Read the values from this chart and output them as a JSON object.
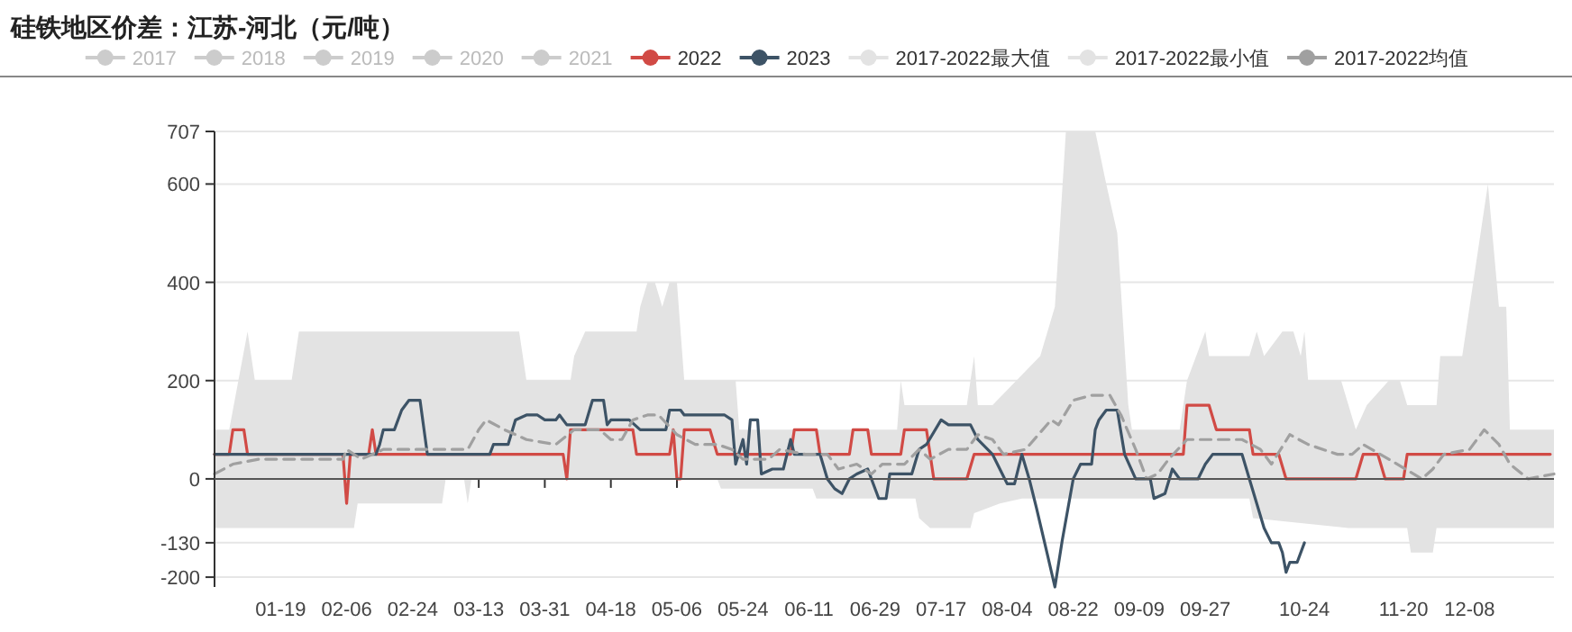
{
  "chart_data": {
    "type": "line",
    "title": "硅铁地区价差：江苏-河北（元/吨）",
    "xlim": [
      "--01-01",
      "--12-31"
    ],
    "xticks": [
      {
        "value": "--01-19",
        "label": "01-19"
      },
      {
        "value": "--02-06",
        "label": "02-06"
      },
      {
        "value": "--02-24",
        "label": "02-24"
      },
      {
        "value": "--03-13",
        "label": "03-13"
      },
      {
        "value": "--03-31",
        "label": "03-31"
      },
      {
        "value": "--04-18",
        "label": "04-18"
      },
      {
        "value": "--05-06",
        "label": "05-06"
      },
      {
        "value": "--05-24",
        "label": "05-24"
      },
      {
        "value": "--06-11",
        "label": "06-11"
      },
      {
        "value": "--06-29",
        "label": "06-29"
      },
      {
        "value": "--07-17",
        "label": "07-17"
      },
      {
        "value": "--08-04",
        "label": "08-04"
      },
      {
        "value": "--08-22",
        "label": "08-22"
      },
      {
        "value": "--09-09",
        "label": "09-09"
      },
      {
        "value": "--09-27",
        "label": "09-27"
      },
      {
        "value": "--10-15",
        "label": null
      },
      {
        "value": "--10-24",
        "label": "10-24"
      },
      {
        "value": "--11-02",
        "label": null
      },
      {
        "value": "--11-20",
        "label": "11-20"
      },
      {
        "value": "--12-08",
        "label": "12-08"
      }
    ],
    "ylim": [
      -220,
      707
    ],
    "yticks": [
      -200,
      -130,
      0,
      200,
      400,
      600,
      707
    ],
    "grid": "y",
    "legend": "top",
    "series": [
      {
        "name": "2017",
        "color": "#cccccc"
      },
      {
        "name": "2018",
        "color": "#cccccc"
      },
      {
        "name": "2019",
        "color": "#cccccc"
      },
      {
        "name": "2020",
        "color": "#cccccc"
      },
      {
        "name": "2021",
        "color": "#cccccc"
      },
      {
        "name": "2022",
        "color": "#d14a45",
        "x": [
          "--01-01",
          "--01-05",
          "--01-06",
          "--01-09",
          "--01-10",
          "--02-05",
          "--02-06",
          "--02-07",
          "--02-12",
          "--02-13",
          "--02-14",
          "--04-05",
          "--04-06",
          "--04-07",
          "--04-24",
          "--04-25",
          "--05-04",
          "--05-05",
          "--05-06",
          "--05-07",
          "--05-08",
          "--05-15",
          "--05-17",
          "--06-06",
          "--06-07",
          "--06-13",
          "--06-14",
          "--06-22",
          "--06-23",
          "--06-27",
          "--06-28",
          "--07-06",
          "--07-07",
          "--07-13",
          "--07-15",
          "--07-24",
          "--07-26",
          "--09-21",
          "--09-22",
          "--09-28",
          "--09-30",
          "--10-09",
          "--10-10",
          "--10-17",
          "--10-19",
          "--11-07",
          "--11-09",
          "--11-13",
          "--11-15",
          "--11-20",
          "--11-21",
          "--12-30"
        ],
        "values": [
          50,
          50,
          100,
          100,
          50,
          50,
          -50,
          50,
          50,
          100,
          50,
          50,
          0,
          100,
          100,
          50,
          50,
          100,
          0,
          0,
          100,
          100,
          50,
          50,
          100,
          100,
          50,
          50,
          100,
          100,
          50,
          50,
          100,
          100,
          0,
          0,
          50,
          50,
          150,
          150,
          100,
          100,
          50,
          50,
          0,
          0,
          50,
          50,
          0,
          0,
          50,
          50
        ]
      },
      {
        "name": "2023",
        "color": "#3d5366",
        "x": [
          "--01-01",
          "--02-14",
          "--02-15",
          "--02-16",
          "--02-19",
          "--02-21",
          "--02-23",
          "--02-26",
          "--02-28",
          "--03-16",
          "--03-17",
          "--03-21",
          "--03-23",
          "--03-26",
          "--03-29",
          "--03-31",
          "--04-03",
          "--04-04",
          "--04-06",
          "--04-11",
          "--04-13",
          "--04-16",
          "--04-17",
          "--04-18",
          "--04-23",
          "--04-26",
          "--05-03",
          "--05-04",
          "--05-07",
          "--05-08",
          "--05-19",
          "--05-21",
          "--05-22",
          "--05-24",
          "--05-25",
          "--05-26",
          "--05-28",
          "--05-29",
          "--06-01",
          "--06-04",
          "--06-06",
          "--06-07",
          "--06-14",
          "--06-16",
          "--06-18",
          "--06-20",
          "--06-22",
          "--06-24",
          "--06-27",
          "--06-30",
          "--07-02",
          "--07-03",
          "--07-09",
          "--07-11",
          "--07-13",
          "--07-17",
          "--07-19",
          "--07-25",
          "--07-27",
          "--07-31",
          "--08-02",
          "--08-04",
          "--08-06",
          "--08-08",
          "--08-10",
          "--08-12",
          "--08-15",
          "--08-17",
          "--08-19",
          "--08-22",
          "--08-24",
          "--08-27",
          "--08-28",
          "--08-29",
          "--08-31",
          "--09-03",
          "--09-05",
          "--09-08",
          "--09-12",
          "--09-13",
          "--09-16",
          "--09-18",
          "--09-20",
          "--09-25",
          "--09-27",
          "--09-29",
          "--10-07",
          "--10-09",
          "--10-11",
          "--10-13",
          "--10-15",
          "--10-17",
          "--10-18",
          "--10-19",
          "--10-20",
          "--10-22",
          "--10-24"
        ],
        "values": [
          50,
          50,
          70,
          100,
          100,
          140,
          160,
          160,
          50,
          50,
          70,
          70,
          120,
          130,
          130,
          120,
          120,
          130,
          110,
          110,
          160,
          160,
          110,
          120,
          120,
          100,
          100,
          140,
          140,
          130,
          130,
          120,
          30,
          80,
          30,
          120,
          120,
          10,
          20,
          20,
          80,
          50,
          50,
          0,
          -20,
          -30,
          0,
          10,
          20,
          -40,
          -40,
          10,
          10,
          60,
          70,
          120,
          110,
          110,
          80,
          50,
          20,
          -10,
          -10,
          50,
          0,
          -60,
          -155,
          -220,
          -125,
          0,
          30,
          30,
          100,
          120,
          140,
          140,
          50,
          0,
          0,
          -40,
          -30,
          20,
          0,
          0,
          30,
          50,
          50,
          0,
          -50,
          -100,
          -130,
          -130,
          -150,
          -190,
          -170,
          -170,
          -130
        ]
      },
      {
        "name": "2017-2022最大值",
        "type": "area",
        "color": "#e3e3e3",
        "x": [
          "--01-01",
          "--01-05",
          "--01-10",
          "--01-12",
          "--01-22",
          "--01-24",
          "--03-24",
          "--03-26",
          "--04-07",
          "--04-08",
          "--04-11",
          "--04-25",
          "--04-26",
          "--04-28",
          "--04-30",
          "--05-02",
          "--05-04",
          "--05-06",
          "--05-08",
          "--05-22",
          "--05-23",
          "--07-05",
          "--07-06",
          "--07-07",
          "--07-24",
          "--07-26",
          "--07-27",
          "--07-31",
          "--08-13",
          "--08-15",
          "--08-17",
          "--08-20",
          "--08-21",
          "--08-28",
          "--08-31",
          "--09-03",
          "--09-06",
          "--09-07",
          "--09-20",
          "--09-22",
          "--09-27",
          "--09-28",
          "--10-09",
          "--10-11",
          "--10-13",
          "--10-18",
          "--10-21",
          "--10-23",
          "--10-24",
          "--10-25",
          "--11-03",
          "--11-07",
          "--11-10",
          "--11-16",
          "--11-19",
          "--11-21",
          "--11-29",
          "--11-30",
          "--12-06",
          "--12-09",
          "--12-13",
          "--12-16",
          "--12-18",
          "--12-19",
          "--12-31"
        ],
        "values": [
          100,
          100,
          300,
          200,
          200,
          300,
          300,
          200,
          200,
          250,
          300,
          300,
          350,
          400,
          400,
          350,
          400,
          400,
          200,
          200,
          100,
          100,
          200,
          150,
          150,
          250,
          150,
          150,
          250,
          300,
          350,
          707,
          707,
          707,
          600,
          500,
          150,
          100,
          100,
          200,
          300,
          250,
          250,
          300,
          250,
          300,
          300,
          250,
          300,
          200,
          200,
          100,
          150,
          200,
          200,
          150,
          150,
          250,
          250,
          400,
          600,
          350,
          350,
          100,
          100
        ]
      },
      {
        "name": "2017-2022最小值",
        "type": "area",
        "color": "#e3e3e3",
        "x": [
          "--01-01",
          "--02-08",
          "--02-09",
          "--03-03",
          "--03-04",
          "--03-09",
          "--03-10",
          "--03-11",
          "--05-17",
          "--05-18",
          "--06-12",
          "--06-13",
          "--07-10",
          "--07-11",
          "--07-14",
          "--07-25",
          "--07-26",
          "--08-02",
          "--08-08",
          "--10-09",
          "--10-10",
          "--11-05",
          "--11-21",
          "--11-22",
          "--11-28",
          "--11-29",
          "--12-31"
        ],
        "values": [
          -100,
          -100,
          -50,
          -50,
          0,
          0,
          -50,
          0,
          0,
          -20,
          -20,
          -40,
          -40,
          -80,
          -100,
          -100,
          -70,
          -50,
          -40,
          -40,
          -80,
          -100,
          -100,
          -150,
          -150,
          -100,
          -100
        ]
      },
      {
        "name": "2017-2022均值",
        "type": "line",
        "line_style": "dashed",
        "color": "#a0a0a0",
        "x": [
          "--01-01",
          "--01-06",
          "--01-13",
          "--02-05",
          "--02-06",
          "--02-10",
          "--02-16",
          "--03-10",
          "--03-13",
          "--03-15",
          "--03-20",
          "--03-26",
          "--04-03",
          "--04-08",
          "--04-15",
          "--04-18",
          "--04-21",
          "--04-24",
          "--04-28",
          "--05-01",
          "--05-06",
          "--05-11",
          "--05-17",
          "--05-21",
          "--05-24",
          "--05-31",
          "--06-03",
          "--06-10",
          "--06-16",
          "--06-19",
          "--06-24",
          "--06-28",
          "--07-01",
          "--07-07",
          "--07-11",
          "--07-14",
          "--07-19",
          "--07-24",
          "--07-27",
          "--07-31",
          "--08-03",
          "--08-09",
          "--08-16",
          "--08-18",
          "--08-22",
          "--08-27",
          "--09-01",
          "--09-04",
          "--09-08",
          "--09-11",
          "--09-14",
          "--09-17",
          "--09-22",
          "--10-07",
          "--10-12",
          "--10-15",
          "--10-20",
          "--10-25",
          "--11-02",
          "--11-06",
          "--11-09",
          "--11-16",
          "--11-25",
          "--11-28",
          "--12-01",
          "--12-08",
          "--12-12",
          "--12-16",
          "--12-19",
          "--12-24",
          "--12-31"
        ],
        "values": [
          10,
          30,
          40,
          40,
          60,
          40,
          60,
          60,
          100,
          120,
          100,
          80,
          70,
          100,
          100,
          80,
          80,
          120,
          130,
          130,
          90,
          70,
          70,
          60,
          40,
          40,
          60,
          50,
          50,
          20,
          30,
          10,
          30,
          30,
          60,
          40,
          60,
          60,
          90,
          80,
          50,
          60,
          120,
          110,
          160,
          170,
          170,
          130,
          60,
          0,
          10,
          40,
          80,
          80,
          60,
          30,
          90,
          70,
          50,
          50,
          70,
          40,
          0,
          20,
          50,
          60,
          100,
          70,
          30,
          0,
          10
        ]
      }
    ]
  }
}
